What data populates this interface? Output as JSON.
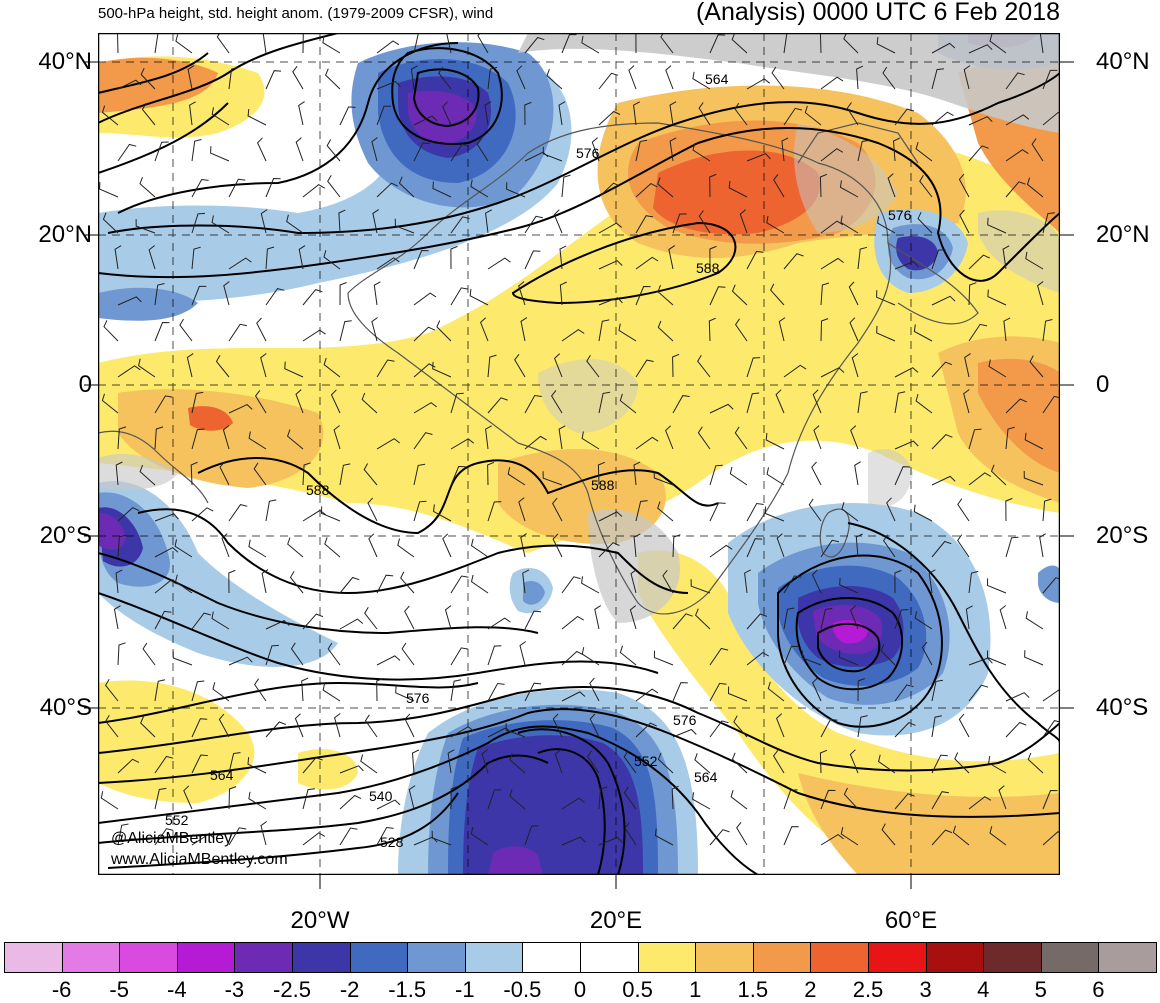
{
  "header": {
    "left_title": "500-hPa height, std. height anom. (1979-2009 CFSR), wind",
    "right_title": "(Analysis) 0000 UTC 6 Feb 2018"
  },
  "axes": {
    "lat_labels": [
      "40°N",
      "20°N",
      "0",
      "20°S",
      "40°S"
    ],
    "lon_labels": [
      "20°W",
      "20°E",
      "60°E"
    ]
  },
  "contour_labels": [
    "564",
    "576",
    "576",
    "588",
    "588",
    "588",
    "576",
    "576",
    "564",
    "564",
    "552",
    "552",
    "540",
    "528"
  ],
  "watermark": {
    "line1": "@AliciaMBentley",
    "line2": "www.AliciaMBentley.com"
  },
  "colorbar": {
    "labels": [
      "-6",
      "-5",
      "-4",
      "-3",
      "-2.5",
      "-2",
      "-1.5",
      "-1",
      "-0.5",
      "0",
      "0.5",
      "1",
      "1.5",
      "2",
      "2.5",
      "3",
      "4",
      "5",
      "6"
    ],
    "colors": [
      "#ebb9e6",
      "#e47ae6",
      "#d94be0",
      "#b51ad4",
      "#6c2ab5",
      "#3d36a8",
      "#3f6ac0",
      "#6f98d2",
      "#a8cbe8",
      "#ffffff",
      "#ffffff",
      "#fde96c",
      "#f5c25d",
      "#f29a49",
      "#ed6430",
      "#e81516",
      "#a80f0f",
      "#6e2a2a",
      "#756a68",
      "#a99c9c"
    ]
  }
}
